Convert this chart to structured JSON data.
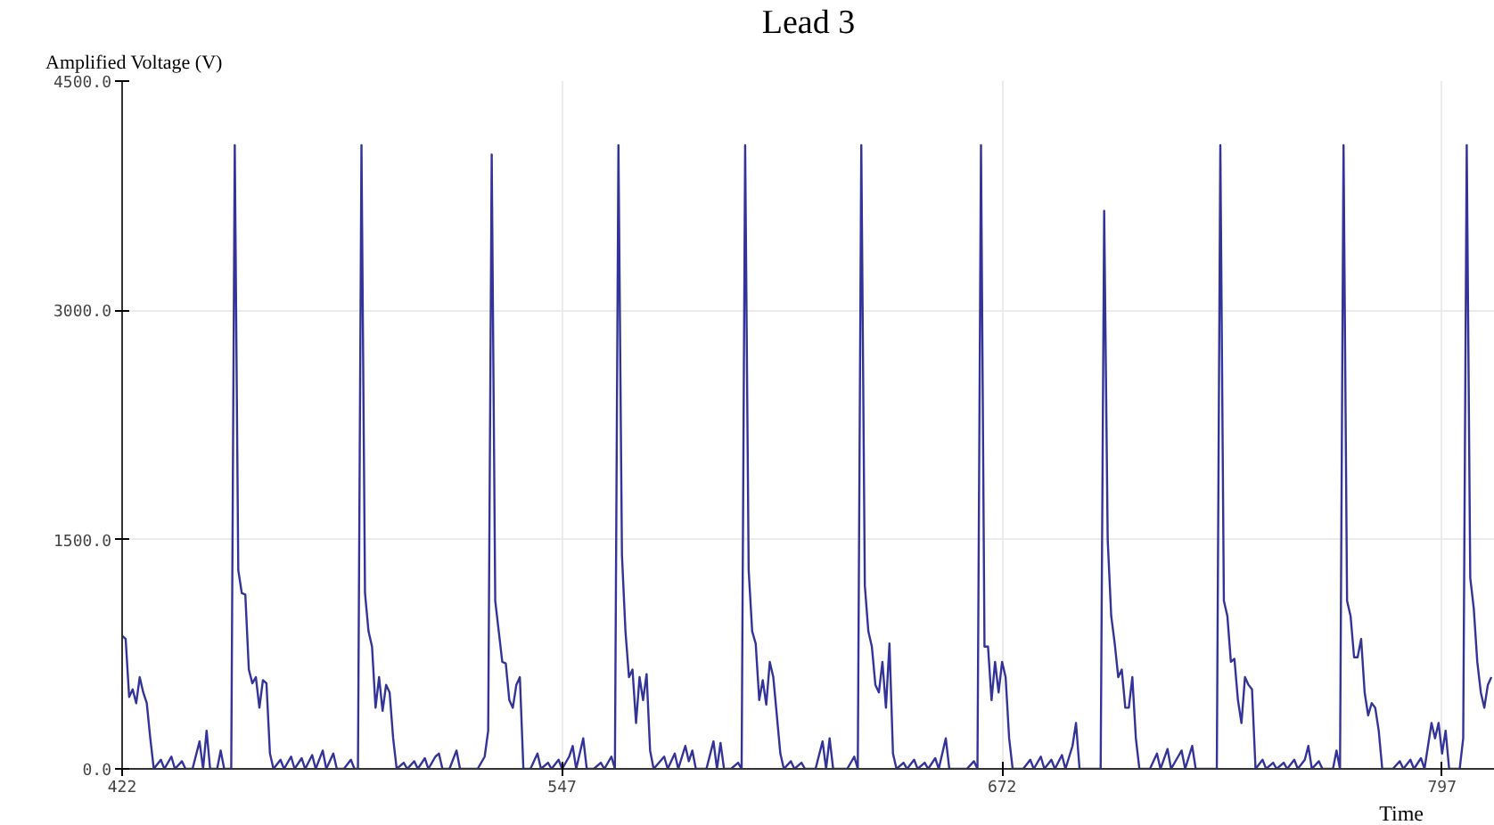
{
  "chart_data": {
    "type": "line",
    "title": "Lead 3",
    "xlabel": "Time",
    "ylabel": "Amplified Voltage (V)",
    "xlim": [
      422,
      812
    ],
    "ylim": [
      0,
      4500
    ],
    "xticks": [
      422,
      547,
      672,
      797
    ],
    "yticks": [
      {
        "value": 0,
        "label": "0.0"
      },
      {
        "value": 1500,
        "label": "1500.0"
      },
      {
        "value": 3000,
        "label": "3000.0"
      },
      {
        "value": 4500,
        "label": "4500.0"
      }
    ],
    "grid": true,
    "marker": "none",
    "line_style": "solid",
    "series": [
      {
        "color": "#333399",
        "x": [
          422,
          423,
          424,
          425,
          426,
          427,
          428,
          429,
          430,
          431,
          433,
          434,
          436,
          437,
          439,
          440,
          442,
          444,
          445,
          446,
          447,
          449,
          450,
          451,
          453,
          454,
          455,
          456,
          457,
          458,
          459,
          460,
          461,
          462,
          463,
          464,
          465,
          467,
          468,
          470,
          471,
          473,
          474,
          476,
          477,
          479,
          480,
          482,
          483,
          485,
          487,
          488,
          489,
          490,
          491,
          492,
          493,
          494,
          495,
          496,
          497,
          498,
          499,
          500,
          502,
          503,
          505,
          506,
          508,
          509,
          511,
          512,
          513,
          515,
          517,
          518,
          520,
          523,
          525,
          526,
          527,
          528,
          529,
          530,
          531,
          532,
          533,
          534,
          535,
          536,
          538,
          540,
          541,
          543,
          544,
          546,
          547,
          549,
          550,
          551,
          553,
          554,
          556,
          558,
          559,
          561,
          562,
          563,
          564,
          565,
          566,
          567,
          568,
          569,
          570,
          571,
          572,
          573,
          576,
          577,
          579,
          580,
          582,
          583,
          584,
          585,
          588,
          590,
          591,
          592,
          593,
          595,
          597,
          598,
          599,
          600,
          601,
          602,
          603,
          604,
          605,
          606,
          607,
          608,
          609,
          610,
          612,
          613,
          615,
          616,
          619,
          621,
          622,
          623,
          624,
          626,
          628,
          630,
          631,
          632,
          633,
          634,
          635,
          636,
          637,
          638,
          639,
          640,
          641,
          642,
          644,
          645,
          647,
          648,
          650,
          651,
          653,
          654,
          656,
          657,
          658,
          660,
          662,
          664,
          665,
          666,
          667,
          668,
          669,
          670,
          671,
          672,
          673,
          674,
          675,
          678,
          680,
          681,
          683,
          684,
          686,
          687,
          689,
          690,
          692,
          693,
          694,
          696,
          700,
          701,
          702,
          703,
          704,
          705,
          706,
          707,
          708,
          709,
          710,
          711,
          714,
          716,
          717,
          719,
          720,
          722,
          723,
          724,
          726,
          727,
          729,
          733,
          734,
          735,
          736,
          737,
          738,
          739,
          740,
          741,
          742,
          743,
          744,
          746,
          747,
          749,
          750,
          752,
          753,
          755,
          756,
          758,
          759,
          760,
          762,
          763,
          766,
          767,
          768,
          769,
          770,
          771,
          772,
          773,
          774,
          775,
          776,
          777,
          778,
          779,
          780,
          783,
          785,
          786,
          788,
          789,
          791,
          792,
          794,
          795,
          796,
          797,
          798,
          799,
          800,
          802,
          803,
          804,
          805,
          806,
          807,
          808,
          809,
          810,
          811
        ],
        "values": [
          870,
          850,
          470,
          520,
          430,
          600,
          500,
          430,
          200,
          0,
          60,
          0,
          80,
          0,
          50,
          0,
          0,
          180,
          0,
          250,
          0,
          0,
          120,
          0,
          0,
          4080,
          1300,
          1150,
          1140,
          650,
          560,
          600,
          400,
          580,
          560,
          100,
          0,
          60,
          0,
          80,
          0,
          70,
          0,
          90,
          0,
          120,
          0,
          100,
          0,
          0,
          60,
          0,
          0,
          4080,
          1150,
          900,
          800,
          400,
          600,
          380,
          550,
          500,
          200,
          0,
          40,
          0,
          50,
          0,
          70,
          0,
          80,
          100,
          0,
          0,
          120,
          0,
          0,
          0,
          80,
          250,
          4020,
          1100,
          900,
          700,
          690,
          450,
          400,
          550,
          600,
          0,
          0,
          100,
          0,
          40,
          0,
          60,
          0,
          80,
          150,
          0,
          200,
          0,
          0,
          40,
          0,
          80,
          0,
          4080,
          1400,
          900,
          600,
          650,
          300,
          600,
          450,
          620,
          120,
          0,
          80,
          0,
          100,
          0,
          150,
          50,
          120,
          0,
          0,
          180,
          0,
          170,
          0,
          0,
          40,
          0,
          4080,
          1300,
          900,
          820,
          450,
          580,
          420,
          700,
          600,
          350,
          100,
          0,
          50,
          0,
          40,
          0,
          0,
          180,
          0,
          200,
          0,
          0,
          0,
          80,
          0,
          4080,
          1200,
          900,
          800,
          550,
          500,
          700,
          400,
          820,
          100,
          0,
          40,
          0,
          60,
          0,
          40,
          0,
          70,
          0,
          200,
          0,
          0,
          0,
          0,
          50,
          0,
          4080,
          800,
          800,
          450,
          700,
          500,
          700,
          600,
          200,
          0,
          0,
          60,
          0,
          80,
          0,
          60,
          0,
          90,
          0,
          150,
          300,
          0,
          0,
          0,
          3650,
          1500,
          1000,
          820,
          600,
          650,
          400,
          400,
          600,
          200,
          0,
          0,
          100,
          0,
          130,
          0,
          80,
          120,
          0,
          150,
          0,
          0,
          0,
          4080,
          1100,
          1000,
          700,
          720,
          450,
          300,
          600,
          550,
          520,
          0,
          60,
          0,
          40,
          0,
          40,
          0,
          60,
          0,
          60,
          150,
          0,
          50,
          0,
          0,
          120,
          0,
          4080,
          1100,
          1000,
          730,
          730,
          850,
          500,
          350,
          430,
          400,
          250,
          0,
          0,
          50,
          0,
          60,
          0,
          70,
          0,
          300,
          200,
          300,
          100,
          250,
          0,
          0,
          0,
          200,
          4080,
          1250,
          1050,
          700,
          500,
          400,
          550,
          600
        ]
      }
    ]
  }
}
